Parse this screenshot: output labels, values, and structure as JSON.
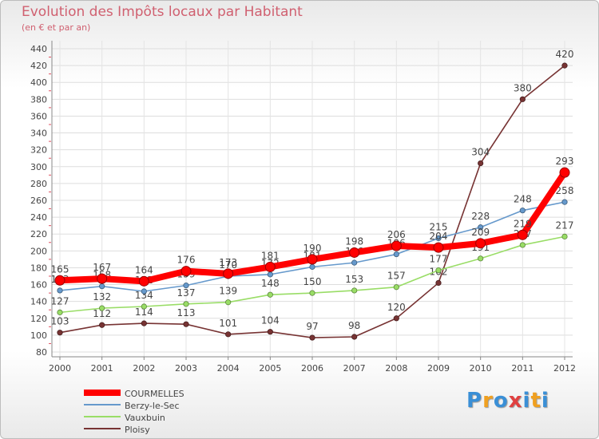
{
  "title": "Evolution des Impôts locaux par Habitant",
  "subtitle": "(en € et par an)",
  "brand": {
    "letters": [
      "P",
      "r",
      "o",
      "x",
      "i",
      "t",
      "i"
    ],
    "colors": [
      "#3a8fd6",
      "#f0a020",
      "#3a8fd6",
      "#e04040",
      "#3a8fd6",
      "#f0a020",
      "#3a8fd6"
    ]
  },
  "chart_data": {
    "type": "line",
    "x": [
      "2000",
      "2001",
      "2002",
      "2003",
      "2004",
      "2005",
      "2006",
      "2007",
      "2008",
      "2009",
      "2010",
      "2011",
      "2012"
    ],
    "ylim": [
      80,
      440
    ],
    "yticks": [
      80,
      100,
      120,
      140,
      160,
      180,
      200,
      220,
      240,
      260,
      280,
      300,
      320,
      340,
      360,
      380,
      400,
      420,
      440
    ],
    "grid": true,
    "legend": "bottom-left",
    "series": [
      {
        "name": "COURMELLES",
        "color": "#ff0000",
        "values": [
          165,
          167,
          164,
          176,
          173,
          181,
          190,
          198,
          206,
          204,
          209,
          219,
          293
        ]
      },
      {
        "name": "Berzy-le-Sec",
        "color": "#6699cc",
        "values": [
          153,
          158,
          152,
          159,
          170,
          172,
          181,
          186,
          196,
          215,
          228,
          248,
          258
        ]
      },
      {
        "name": "Vauxbuin",
        "color": "#99dd66",
        "values": [
          127,
          132,
          134,
          137,
          139,
          148,
          150,
          153,
          157,
          177,
          191,
          207,
          217
        ]
      },
      {
        "name": "Ploisy",
        "color": "#773333",
        "values": [
          103,
          112,
          114,
          113,
          101,
          104,
          97,
          98,
          120,
          162,
          304,
          380,
          420
        ]
      }
    ]
  }
}
